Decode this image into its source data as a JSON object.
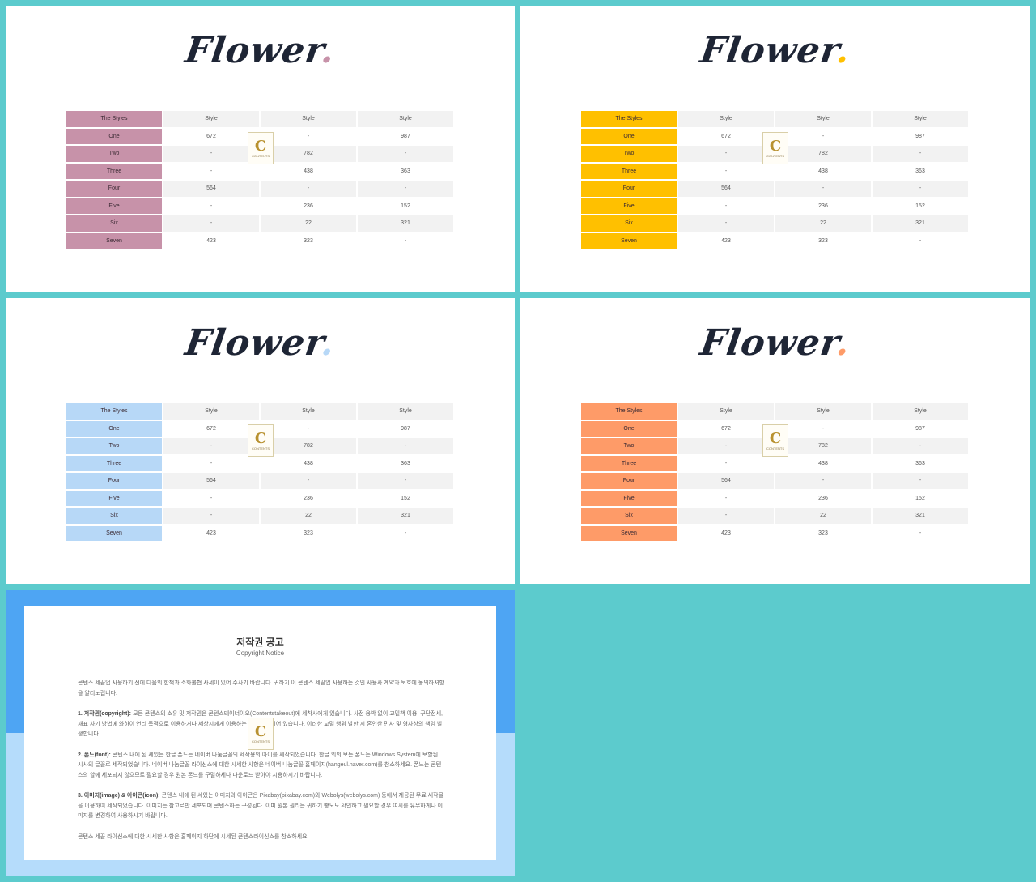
{
  "logo": {
    "letter": "C",
    "text": "CONTENTS"
  },
  "slides": [
    {
      "title": "Flower",
      "dot": ".",
      "accent": "#c792a9",
      "table": {
        "header": [
          "The Styles",
          "Style",
          "Style",
          "Style"
        ],
        "rows": [
          [
            "One",
            "672",
            "-",
            "987"
          ],
          [
            "Two",
            "-",
            "782",
            "-"
          ],
          [
            "Three",
            "-",
            "438",
            "363"
          ],
          [
            "Four",
            "564",
            "-",
            "-"
          ],
          [
            "Five",
            "-",
            "236",
            "152"
          ],
          [
            "Six",
            "-",
            "22",
            "321"
          ],
          [
            "Seven",
            "423",
            "323",
            "-"
          ]
        ]
      }
    },
    {
      "title": "Flower",
      "dot": ".",
      "accent": "#ffc000",
      "table": {
        "header": [
          "The Styles",
          "Style",
          "Style",
          "Style"
        ],
        "rows": [
          [
            "One",
            "672",
            "-",
            "987"
          ],
          [
            "Two",
            "-",
            "782",
            "-"
          ],
          [
            "Three",
            "-",
            "438",
            "363"
          ],
          [
            "Four",
            "564",
            "-",
            "-"
          ],
          [
            "Five",
            "-",
            "236",
            "152"
          ],
          [
            "Six",
            "-",
            "22",
            "321"
          ],
          [
            "Seven",
            "423",
            "323",
            "-"
          ]
        ]
      }
    },
    {
      "title": "Flower",
      "dot": ".",
      "accent": "#b7d8f7",
      "table": {
        "header": [
          "The Styles",
          "Style",
          "Style",
          "Style"
        ],
        "rows": [
          [
            "One",
            "672",
            "-",
            "987"
          ],
          [
            "Two",
            "-",
            "782",
            "-"
          ],
          [
            "Three",
            "-",
            "438",
            "363"
          ],
          [
            "Four",
            "564",
            "-",
            "-"
          ],
          [
            "Five",
            "-",
            "236",
            "152"
          ],
          [
            "Six",
            "-",
            "22",
            "321"
          ],
          [
            "Seven",
            "423",
            "323",
            "-"
          ]
        ]
      }
    },
    {
      "title": "Flower",
      "dot": ".",
      "accent": "#fe9b68",
      "table": {
        "header": [
          "The Styles",
          "Style",
          "Style",
          "Style"
        ],
        "rows": [
          [
            "One",
            "672",
            "-",
            "987"
          ],
          [
            "Two",
            "-",
            "782",
            "-"
          ],
          [
            "Three",
            "-",
            "438",
            "363"
          ],
          [
            "Four",
            "564",
            "-",
            "-"
          ],
          [
            "Five",
            "-",
            "236",
            "152"
          ],
          [
            "Six",
            "-",
            "22",
            "321"
          ],
          [
            "Seven",
            "423",
            "323",
            "-"
          ]
        ]
      }
    }
  ],
  "copyright": {
    "title": "저작권 공고",
    "subtitle": "Copyright Notice",
    "intro": "콘텐스 세끝업 사용하기 전에 다음의 한책과 소화불협 사세이 있어 주사기 바랍니다. 귀하기 이 콘텐스 세끝업 사용하는 것인 사용사 계약과 보호에 동의하셔항을 알리노립니다.",
    "s1_head": "1. 저작권(copyright):",
    "s1_text": "모든 콘텐스의 소유 및 저작권은 콘텐스테이너이오(Contentstakeout)에 세착사에게 있습니다. 사전 용박 없이 교밀책 이용, 구단전세, 재표 사기 방법에 와하이 연리 목적으로 이용하거나 세상시에게 이용하는 것인 금시되어 있습니다. 이러한 교밀 행위 발한 시 혼인한 민사 및 형사상의 책임 발생합니다.",
    "s2_head": "2. 폰느(font):",
    "s2_text": "콘텐스 내에 된 세있는 한글 폰느는 네이버 나눔글꼴의 세작용의 아이를 세작되었습니다. 한글 외의 보든 폰느는 Windows System에 보할된 시사의 글꼴로 세작되었습니다. 네이버 나눔글꼴 라이신스에 대한 시세한 사항은 네이버 나눔글꼴 홈페이지(hangeul.naver.com)를 참소하세요. 폰느는 콘텐스의 할에 세포되지 않으므로 필요할 경우 원본 폰느를 구밀하세나 다운로드 받아야 시용하시기 바랍니다.",
    "s3_head": "3. 이미지(image) & 아이콘(icon):",
    "s3_text": "콘텐스 내에 된 세있는 이미지와 아이콘은 Pixabay(pixabay.com)와 Webolys(webolys.com) 등에서 제공된 무료 세작물을 이용하여 세작되었습니다. 이미지는 참고로만 세포되며 콘텐스하는 구성된다. 이미 원본 권리는 귀하기 빵노도 확인하고 필요할 경우 여시를 유무하게나 이미지를 변경하여 사용하시기 바랍니다.",
    "footer": "콘텐스 세끝 라이신스에 대한 시세한 사항은 홈페이지 하단에 시세된 콘텐스라이신스를 참소하세요."
  }
}
